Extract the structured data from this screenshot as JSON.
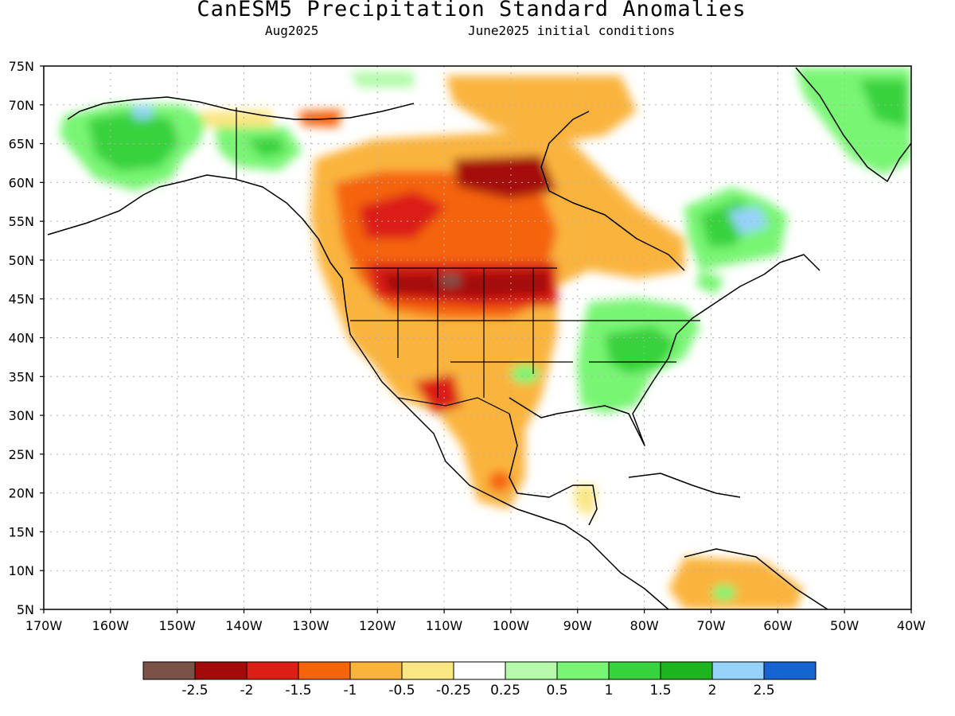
{
  "title": "CanESM5 Precipitation Standard Anomalies",
  "subtitle_left": "Aug2025",
  "subtitle_right": "June2025 initial conditions",
  "lat_labels": [
    "75N",
    "70N",
    "65N",
    "60N",
    "55N",
    "50N",
    "45N",
    "40N",
    "35N",
    "30N",
    "25N",
    "20N",
    "15N",
    "10N",
    "5N"
  ],
  "lon_labels": [
    "170W",
    "160W",
    "150W",
    "140W",
    "130W",
    "120W",
    "110W",
    "100W",
    "90W",
    "80W",
    "70W",
    "60W",
    "50W",
    "40W"
  ],
  "colorbar": {
    "colors": [
      "#7b5248",
      "#a50a0a",
      "#dc1e14",
      "#f5640a",
      "#fab43c",
      "#fae682",
      "#ffffff",
      "#b4faaa",
      "#78f573",
      "#37d23c",
      "#1eb41e",
      "#96d2fa",
      "#1464d2"
    ],
    "labels": [
      "-2.5",
      "-2",
      "-1.5",
      "-1",
      "-0.5",
      "-0.25",
      "0.25",
      "0.5",
      "1",
      "1.5",
      "2",
      "2.5"
    ]
  }
}
